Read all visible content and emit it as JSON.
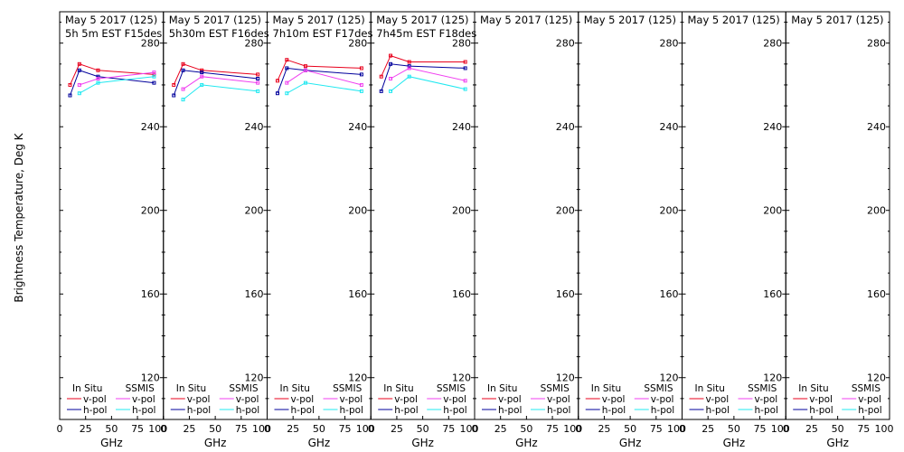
{
  "chart_data": {
    "type": "line",
    "ylabel": "Brightness Temperature, Deg K",
    "xlabel": "GHz",
    "xlim": [
      0,
      100
    ],
    "ylim": [
      100,
      295
    ],
    "yticks": [
      120,
      160,
      200,
      240,
      280
    ],
    "xticks": [
      0,
      25,
      50,
      75,
      100
    ],
    "xtick_labels": [
      "0",
      "25",
      "50",
      "75",
      "100"
    ],
    "legend": {
      "insitu_title": "In Situ",
      "ssmis_title": "SSMIS",
      "vpol": "v-pol",
      "hpol": "h-pol"
    },
    "colors": {
      "insitu_v": "#e8001c",
      "insitu_h": "#00009c",
      "ssmis_v": "#f040f0",
      "ssmis_h": "#20e8f0"
    },
    "panels": [
      {
        "date": "May 5 2017 (125)",
        "subtitle": "5h 5m  EST F15des",
        "series": [
          {
            "name": "In Situ v-pol",
            "x": [
              10,
              19,
              37,
              91
            ],
            "y": [
              260,
              270,
              267,
              265
            ]
          },
          {
            "name": "In Situ h-pol",
            "x": [
              10,
              19,
              37,
              91
            ],
            "y": [
              255,
              267,
              264,
              261
            ]
          },
          {
            "name": "SSMIS v-pol",
            "x": [
              19,
              37,
              91
            ],
            "y": [
              260,
              263,
              266
            ]
          },
          {
            "name": "SSMIS h-pol",
            "x": [
              19,
              37,
              91
            ],
            "y": [
              256,
              261,
              264
            ]
          }
        ]
      },
      {
        "date": "May 5 2017 (125)",
        "subtitle": "5h30m  EST F16des",
        "series": [
          {
            "name": "In Situ v-pol",
            "x": [
              10,
              19,
              37,
              91
            ],
            "y": [
              260,
              270,
              267,
              265
            ]
          },
          {
            "name": "In Situ h-pol",
            "x": [
              10,
              19,
              37,
              91
            ],
            "y": [
              255,
              267,
              266,
              263
            ]
          },
          {
            "name": "SSMIS v-pol",
            "x": [
              19,
              37,
              91
            ],
            "y": [
              258,
              264,
              261
            ]
          },
          {
            "name": "SSMIS h-pol",
            "x": [
              19,
              37,
              91
            ],
            "y": [
              253,
              260,
              257
            ]
          }
        ]
      },
      {
        "date": "May 5 2017 (125)",
        "subtitle": "7h10m  EST F17des",
        "series": [
          {
            "name": "In Situ v-pol",
            "x": [
              10,
              19,
              37,
              91
            ],
            "y": [
              262,
              272,
              269,
              268
            ]
          },
          {
            "name": "In Situ h-pol",
            "x": [
              10,
              19,
              37,
              91
            ],
            "y": [
              256,
              268,
              267,
              265
            ]
          },
          {
            "name": "SSMIS v-pol",
            "x": [
              19,
              37,
              91
            ],
            "y": [
              261,
              267,
              260
            ]
          },
          {
            "name": "SSMIS h-pol",
            "x": [
              19,
              37,
              91
            ],
            "y": [
              256,
              261,
              257
            ]
          }
        ]
      },
      {
        "date": "May 5 2017 (125)",
        "subtitle": "7h45m  EST F18des",
        "series": [
          {
            "name": "In Situ v-pol",
            "x": [
              10,
              19,
              37,
              91
            ],
            "y": [
              264,
              274,
              271,
              271
            ]
          },
          {
            "name": "In Situ h-pol",
            "x": [
              10,
              19,
              37,
              91
            ],
            "y": [
              257,
              270,
              269,
              268
            ]
          },
          {
            "name": "SSMIS v-pol",
            "x": [
              19,
              37,
              91
            ],
            "y": [
              263,
              268,
              262
            ]
          },
          {
            "name": "SSMIS h-pol",
            "x": [
              19,
              37,
              91
            ],
            "y": [
              257,
              264,
              258
            ]
          }
        ]
      },
      {
        "date": "May 5 2017 (125)",
        "subtitle": "",
        "series": []
      },
      {
        "date": "May 5 2017 (125)",
        "subtitle": "",
        "series": []
      },
      {
        "date": "May 5 2017 (125)",
        "subtitle": "",
        "series": []
      },
      {
        "date": "May 5 2017 (125)",
        "subtitle": "",
        "series": []
      }
    ]
  }
}
